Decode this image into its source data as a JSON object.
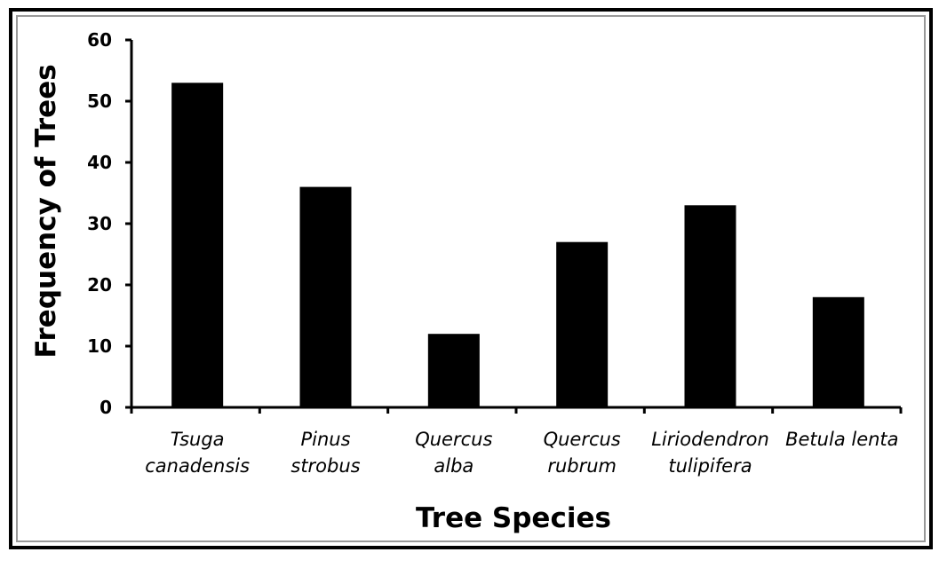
{
  "chart_data": {
    "type": "bar",
    "categories": [
      [
        "Tsuga",
        "canadensis"
      ],
      [
        "Pinus",
        "strobus"
      ],
      [
        "Quercus",
        "alba"
      ],
      [
        "Quercus",
        "rubrum"
      ],
      [
        "Liriodendron",
        "tulipifera"
      ],
      [
        "Betula lenta"
      ]
    ],
    "values": [
      53,
      36,
      12,
      27,
      33,
      18
    ],
    "xlabel": "Tree Species",
    "ylabel": "Frequency of Trees",
    "ylim": [
      0,
      60
    ],
    "yticks": [
      0,
      10,
      20,
      30,
      40,
      50,
      60
    ],
    "grid": false,
    "bar_color": "#000000"
  }
}
